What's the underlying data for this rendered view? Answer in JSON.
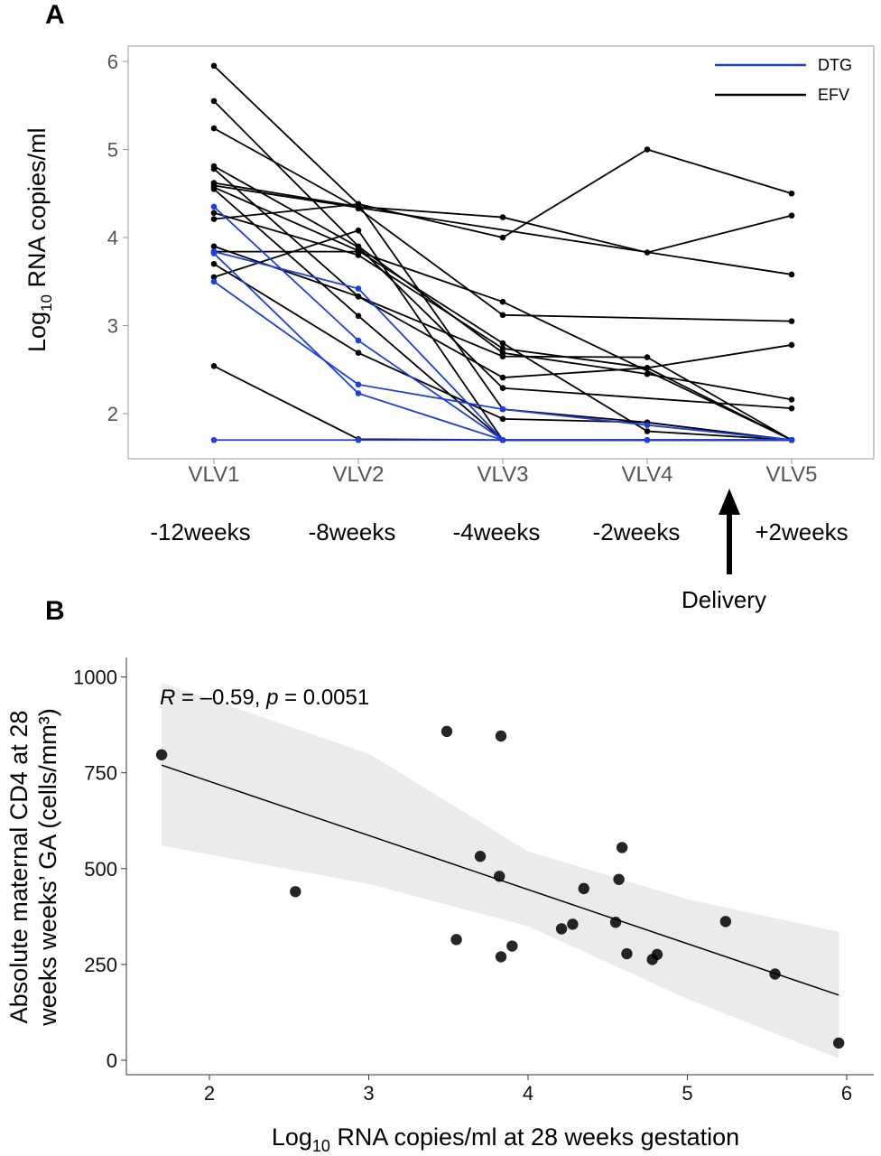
{
  "chart_data": [
    {
      "panel": "A",
      "type": "line",
      "categories": [
        "VLV1",
        "VLV2",
        "VLV3",
        "VLV4",
        "VLV5"
      ],
      "timepoints": [
        "-12weeks",
        "-8weeks",
        "-4weeks",
        "-2weeks",
        "+2weeks"
      ],
      "annotation": "Delivery",
      "ylabel_main": "Log",
      "ylabel_sub": "10",
      "ylabel_rest": " RNA copies/ml",
      "ylim": [
        1.55,
        6.15
      ],
      "yticks": [
        2,
        3,
        4,
        5,
        6
      ],
      "legend": {
        "position": "top-right",
        "items": [
          {
            "name": "DTG",
            "color": "#1f3fd6"
          },
          {
            "name": "EFV",
            "color": "#000000"
          }
        ]
      },
      "series": [
        {
          "group": "EFV",
          "values": [
            5.95,
            4.38,
            2.05,
            1.9,
            1.7
          ]
        },
        {
          "group": "EFV",
          "values": [
            5.55,
            3.9,
            2.69,
            2.45,
            2.16
          ]
        },
        {
          "group": "EFV",
          "values": [
            5.24,
            4.33,
            3.12,
            null,
            3.05
          ]
        },
        {
          "group": "EFV",
          "values": [
            4.81,
            3.89,
            2.29,
            null,
            2.06
          ]
        },
        {
          "group": "EFV",
          "values": [
            4.78,
            3.33,
            2.65,
            2.64,
            1.7
          ]
        },
        {
          "group": "EFV",
          "values": [
            4.62,
            4.35,
            4.23,
            3.83,
            4.25
          ]
        },
        {
          "group": "EFV",
          "values": [
            4.57,
            3.85,
            2.8,
            1.8,
            1.7
          ]
        },
        {
          "group": "EFV",
          "values": [
            4.55,
            3.11,
            1.7,
            null,
            1.7
          ]
        },
        {
          "group": "EFV",
          "values": [
            4.28,
            3.8,
            2.74,
            2.52,
            1.7
          ]
        },
        {
          "group": "EFV",
          "values": [
            4.21,
            4.38,
            4.0,
            5.0,
            4.5
          ]
        },
        {
          "group": "EFV",
          "values": [
            3.9,
            3.33,
            2.41,
            2.52,
            2.78
          ]
        },
        {
          "group": "EFV",
          "values": [
            3.7,
            2.69,
            1.94,
            1.9,
            1.7
          ]
        },
        {
          "group": "EFV",
          "values": [
            3.84,
            3.84,
            3.27,
            null,
            1.7
          ]
        },
        {
          "group": "EFV",
          "values": [
            3.55,
            4.08,
            1.7,
            1.7,
            1.7
          ]
        },
        {
          "group": "EFV",
          "values": [
            2.54,
            1.71,
            1.7,
            null,
            1.7
          ]
        },
        {
          "group": "EFV",
          "values": [
            4.59,
            4.34,
            null,
            null,
            3.58
          ]
        },
        {
          "group": "DTG",
          "values": [
            4.35,
            2.83,
            1.7,
            null,
            1.7
          ]
        },
        {
          "group": "DTG",
          "values": [
            3.84,
            3.42,
            1.7,
            1.7,
            1.7
          ]
        },
        {
          "group": "DTG",
          "values": [
            3.82,
            2.23,
            1.7,
            null,
            1.7
          ]
        },
        {
          "group": "DTG",
          "values": [
            3.5,
            2.33,
            2.05,
            1.87,
            1.7
          ]
        },
        {
          "group": "DTG",
          "values": [
            1.7,
            1.7,
            1.7,
            1.7,
            1.7
          ]
        }
      ]
    },
    {
      "panel": "B",
      "type": "scatter",
      "annotation": {
        "r_label": "R",
        "r_value": " = –0.59, ",
        "p_label": "p",
        "p_value": " = 0.0051"
      },
      "xlabel_main": "Log",
      "xlabel_sub": "10",
      "xlabel_rest": " RNA copies/ml at 28 weeks gestation",
      "ylabel_line1": "Absolute maternal CD4 at 28",
      "ylabel_line2": "weeks  weeks’ GA (cells/mm³)",
      "xlim": [
        1.6,
        6.2
      ],
      "ylim": [
        -30,
        1030
      ],
      "xticks": [
        2,
        3,
        4,
        5,
        6
      ],
      "yticks": [
        0,
        250,
        500,
        750,
        1000
      ],
      "fit_line": {
        "x": [
          1.7,
          5.95
        ],
        "y": [
          770,
          170
        ]
      },
      "ci_band": {
        "upper": [
          [
            1.7,
            985
          ],
          [
            3.0,
            800
          ],
          [
            4.0,
            545
          ],
          [
            5.0,
            420
          ],
          [
            5.95,
            335
          ]
        ],
        "lower": [
          [
            1.7,
            560
          ],
          [
            3.0,
            460
          ],
          [
            4.0,
            350
          ],
          [
            5.0,
            160
          ],
          [
            5.95,
            5
          ]
        ]
      },
      "points": [
        {
          "x": 1.7,
          "y": 797
        },
        {
          "x": 2.54,
          "y": 440
        },
        {
          "x": 3.49,
          "y": 858
        },
        {
          "x": 3.55,
          "y": 315
        },
        {
          "x": 3.7,
          "y": 532
        },
        {
          "x": 3.82,
          "y": 480
        },
        {
          "x": 3.83,
          "y": 846
        },
        {
          "x": 3.83,
          "y": 270
        },
        {
          "x": 3.9,
          "y": 298
        },
        {
          "x": 4.21,
          "y": 343
        },
        {
          "x": 4.28,
          "y": 355
        },
        {
          "x": 4.35,
          "y": 448
        },
        {
          "x": 4.55,
          "y": 360
        },
        {
          "x": 4.57,
          "y": 472
        },
        {
          "x": 4.59,
          "y": 555
        },
        {
          "x": 4.62,
          "y": 278
        },
        {
          "x": 4.78,
          "y": 263
        },
        {
          "x": 4.81,
          "y": 276
        },
        {
          "x": 5.24,
          "y": 362
        },
        {
          "x": 5.55,
          "y": 225
        },
        {
          "x": 5.95,
          "y": 45
        }
      ]
    }
  ],
  "colors": {
    "dtg": "#1f3fd6",
    "efv": "#000000",
    "band": "#ebebeb",
    "point": "#000000"
  }
}
